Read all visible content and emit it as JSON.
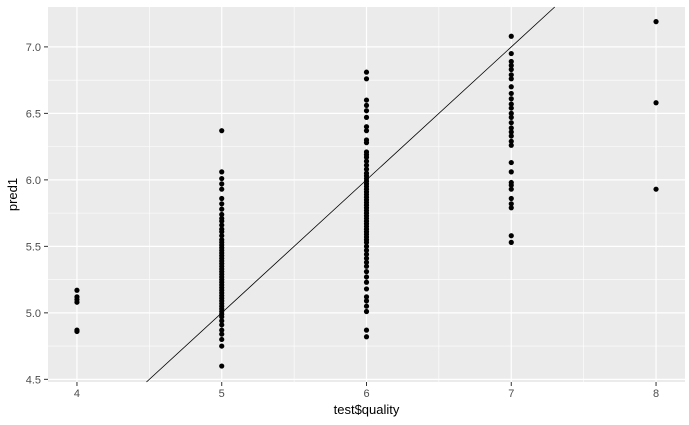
{
  "chart_data": {
    "type": "scatter",
    "title": "",
    "xlabel": "test$quality",
    "ylabel": "pred1",
    "xlim": [
      3.8,
      8.2
    ],
    "ylim": [
      4.48,
      7.3
    ],
    "x_ticks": [
      4,
      5,
      6,
      7,
      8
    ],
    "x_tick_labels": [
      "4",
      "5",
      "6",
      "7",
      "8"
    ],
    "y_ticks": [
      4.5,
      5.0,
      5.5,
      6.0,
      6.5,
      7.0
    ],
    "y_tick_labels": [
      "4.5",
      "5.0",
      "5.5",
      "6.0",
      "6.5",
      "7.0"
    ],
    "grid": true,
    "reference_line": {
      "intercept": 0,
      "slope": 1
    },
    "colors": {
      "panel": "#ebebeb",
      "grid_major": "#ffffff",
      "points": "#000000",
      "line": "#000000"
    },
    "series": [
      {
        "points": [
          [
            4,
            5.17
          ],
          [
            4,
            5.12
          ],
          [
            4,
            5.1
          ],
          [
            4,
            5.08
          ],
          [
            4,
            4.87
          ],
          [
            4,
            4.86
          ],
          [
            5,
            6.37
          ],
          [
            5,
            6.06
          ],
          [
            5,
            6.01
          ],
          [
            5,
            5.97
          ],
          [
            5,
            5.93
          ],
          [
            5,
            5.86
          ],
          [
            5,
            5.82
          ],
          [
            5,
            5.78
          ],
          [
            5,
            5.74
          ],
          [
            5,
            5.71
          ],
          [
            5,
            5.69
          ],
          [
            5,
            5.66
          ],
          [
            5,
            5.63
          ],
          [
            5,
            5.61
          ],
          [
            5,
            5.58
          ],
          [
            5,
            5.55
          ],
          [
            5,
            5.53
          ],
          [
            5,
            5.51
          ],
          [
            5,
            5.49
          ],
          [
            5,
            5.47
          ],
          [
            5,
            5.45
          ],
          [
            5,
            5.43
          ],
          [
            5,
            5.41
          ],
          [
            5,
            5.39
          ],
          [
            5,
            5.37
          ],
          [
            5,
            5.35
          ],
          [
            5,
            5.33
          ],
          [
            5,
            5.31
          ],
          [
            5,
            5.29
          ],
          [
            5,
            5.27
          ],
          [
            5,
            5.25
          ],
          [
            5,
            5.23
          ],
          [
            5,
            5.21
          ],
          [
            5,
            5.19
          ],
          [
            5,
            5.17
          ],
          [
            5,
            5.15
          ],
          [
            5,
            5.13
          ],
          [
            5,
            5.11
          ],
          [
            5,
            5.09
          ],
          [
            5,
            5.07
          ],
          [
            5,
            5.05
          ],
          [
            5,
            5.03
          ],
          [
            5,
            5.01
          ],
          [
            5,
            4.99
          ],
          [
            5,
            4.97
          ],
          [
            5,
            4.94
          ],
          [
            5,
            4.91
          ],
          [
            5,
            4.87
          ],
          [
            5,
            4.84
          ],
          [
            5,
            4.8
          ],
          [
            5,
            4.75
          ],
          [
            5,
            4.6
          ],
          [
            6,
            6.81
          ],
          [
            6,
            6.76
          ],
          [
            6,
            6.6
          ],
          [
            6,
            6.56
          ],
          [
            6,
            6.52
          ],
          [
            6,
            6.47
          ],
          [
            6,
            6.4
          ],
          [
            6,
            6.37
          ],
          [
            6,
            6.3
          ],
          [
            6,
            6.28
          ],
          [
            6,
            6.21
          ],
          [
            6,
            6.19
          ],
          [
            6,
            6.17
          ],
          [
            6,
            6.14
          ],
          [
            6,
            6.11
          ],
          [
            6,
            6.08
          ],
          [
            6,
            6.05
          ],
          [
            6,
            6.03
          ],
          [
            6,
            6.01
          ],
          [
            6,
            5.99
          ],
          [
            6,
            5.97
          ],
          [
            6,
            5.95
          ],
          [
            6,
            5.93
          ],
          [
            6,
            5.91
          ],
          [
            6,
            5.89
          ],
          [
            6,
            5.87
          ],
          [
            6,
            5.85
          ],
          [
            6,
            5.83
          ],
          [
            6,
            5.81
          ],
          [
            6,
            5.79
          ],
          [
            6,
            5.77
          ],
          [
            6,
            5.75
          ],
          [
            6,
            5.73
          ],
          [
            6,
            5.71
          ],
          [
            6,
            5.69
          ],
          [
            6,
            5.67
          ],
          [
            6,
            5.65
          ],
          [
            6,
            5.63
          ],
          [
            6,
            5.61
          ],
          [
            6,
            5.59
          ],
          [
            6,
            5.57
          ],
          [
            6,
            5.55
          ],
          [
            6,
            5.53
          ],
          [
            6,
            5.5
          ],
          [
            6,
            5.47
          ],
          [
            6,
            5.44
          ],
          [
            6,
            5.41
          ],
          [
            6,
            5.38
          ],
          [
            6,
            5.35
          ],
          [
            6,
            5.31
          ],
          [
            6,
            5.27
          ],
          [
            6,
            5.23
          ],
          [
            6,
            5.18
          ],
          [
            6,
            5.12
          ],
          [
            6,
            5.09
          ],
          [
            6,
            5.05
          ],
          [
            6,
            5.01
          ],
          [
            6,
            4.87
          ],
          [
            6,
            4.82
          ],
          [
            7,
            7.08
          ],
          [
            7,
            6.95
          ],
          [
            7,
            6.89
          ],
          [
            7,
            6.86
          ],
          [
            7,
            6.83
          ],
          [
            7,
            6.79
          ],
          [
            7,
            6.76
          ],
          [
            7,
            6.7
          ],
          [
            7,
            6.65
          ],
          [
            7,
            6.61
          ],
          [
            7,
            6.57
          ],
          [
            7,
            6.54
          ],
          [
            7,
            6.5
          ],
          [
            7,
            6.47
          ],
          [
            7,
            6.43
          ],
          [
            7,
            6.39
          ],
          [
            7,
            6.36
          ],
          [
            7,
            6.33
          ],
          [
            7,
            6.29
          ],
          [
            7,
            6.26
          ],
          [
            7,
            6.13
          ],
          [
            7,
            6.06
          ],
          [
            7,
            5.98
          ],
          [
            7,
            5.96
          ],
          [
            7,
            5.93
          ],
          [
            7,
            5.86
          ],
          [
            7,
            5.82
          ],
          [
            7,
            5.79
          ],
          [
            7,
            5.58
          ],
          [
            7,
            5.53
          ],
          [
            8,
            7.19
          ],
          [
            8,
            6.58
          ],
          [
            8,
            5.93
          ]
        ]
      }
    ]
  }
}
